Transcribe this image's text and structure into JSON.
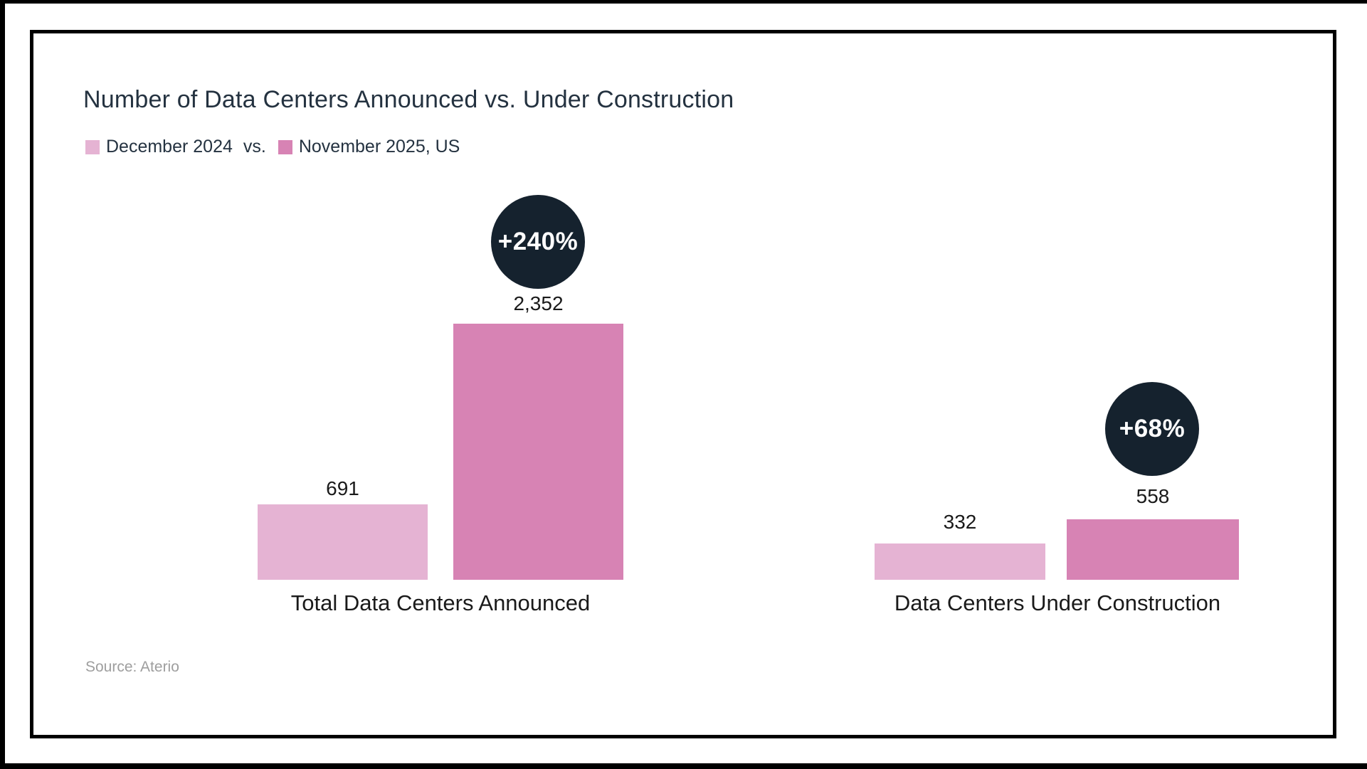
{
  "page": {
    "title": "Number of Data Centers Announced vs. Under Construction",
    "source": "Source: Aterio"
  },
  "legend": {
    "separator": "vs."
  },
  "colors": {
    "series1": "#e5b3d3",
    "series2": "#d783b4",
    "badge": "#15222e"
  },
  "chart_data": {
    "type": "bar",
    "title": "Number of Data Centers Announced vs. Under Construction",
    "subtitle": "December 2024 vs. November 2025, US",
    "categories": [
      "Total Data Centers Announced",
      "Data Centers Under Construction"
    ],
    "series": [
      {
        "name": "December 2024",
        "color": "#e5b3d3",
        "values": [
          691,
          332
        ]
      },
      {
        "name": "November 2025, US",
        "color": "#d783b4",
        "values": [
          2352,
          558
        ]
      }
    ],
    "value_labels": [
      [
        "691",
        "332"
      ],
      [
        "2,352",
        "558"
      ]
    ],
    "change_badges": [
      "+240%",
      "+68%"
    ],
    "ylim": [
      0,
      2400
    ],
    "grid": false,
    "axes_shown": false,
    "legend_position": "top-left",
    "source": "Source: Aterio"
  }
}
